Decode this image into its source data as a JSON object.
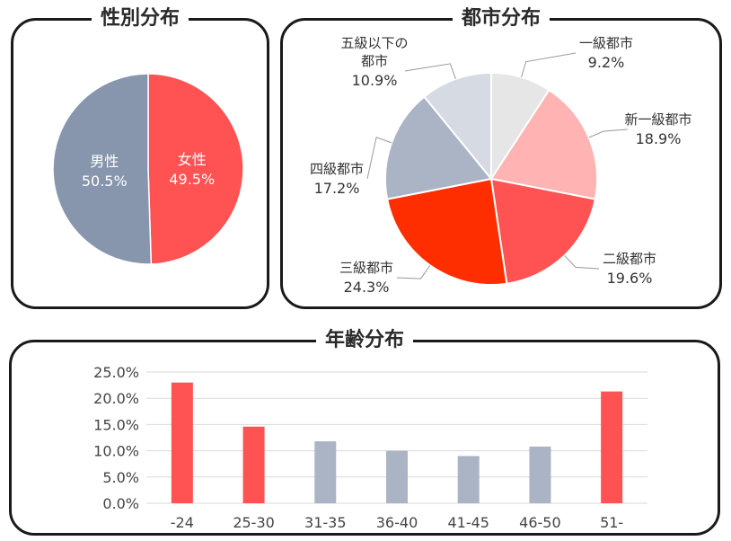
{
  "colors": {
    "male": "#8796ad",
    "female": "#ff5252",
    "city": [
      "#e6e6e6",
      "#ffb3b3",
      "#ff5252",
      "#ff2e00",
      "#aab4c4",
      "#d5dae3"
    ],
    "age_red": "#ff5252",
    "age_grey": "#aab4c4"
  },
  "gender_panel": {
    "title": "性別分布"
  },
  "city_panel": {
    "title": "都市分布"
  },
  "age_panel": {
    "title": "年齢分布"
  },
  "chart_data": [
    {
      "type": "pie",
      "title": "性別分布",
      "labels": [
        "女性",
        "男性"
      ],
      "values": [
        49.5,
        50.5
      ],
      "value_labels": [
        "49.5%",
        "50.5%"
      ]
    },
    {
      "type": "pie",
      "title": "都市分布",
      "labels": [
        "一級都市",
        "新一級都市",
        "二級都市",
        "三級都市",
        "四級都市",
        "五級以下の都市"
      ],
      "label_lines": [
        [
          "一級都市"
        ],
        [
          "新一級都市"
        ],
        [
          "二級都市"
        ],
        [
          "三級都市"
        ],
        [
          "四級都市"
        ],
        [
          "五級以下の",
          "都市"
        ]
      ],
      "values": [
        9.2,
        18.9,
        19.6,
        24.3,
        17.2,
        10.9
      ],
      "value_labels": [
        "9.2%",
        "18.9%",
        "19.6%",
        "24.3%",
        "17.2%",
        "10.9%"
      ]
    },
    {
      "type": "bar",
      "title": "年齢分布",
      "categories": [
        "-24",
        "25-30",
        "31-35",
        "36-40",
        "41-45",
        "46-50",
        "51-"
      ],
      "values": [
        23.0,
        14.6,
        11.8,
        10.0,
        9.0,
        10.8,
        21.3
      ],
      "highlight": [
        true,
        true,
        false,
        false,
        false,
        false,
        true
      ],
      "ylim": [
        0,
        25
      ],
      "yticks": [
        "0.0%",
        "5.0%",
        "10.0%",
        "15.0%",
        "20.0%",
        "25.0%"
      ],
      "grid": true
    }
  ]
}
